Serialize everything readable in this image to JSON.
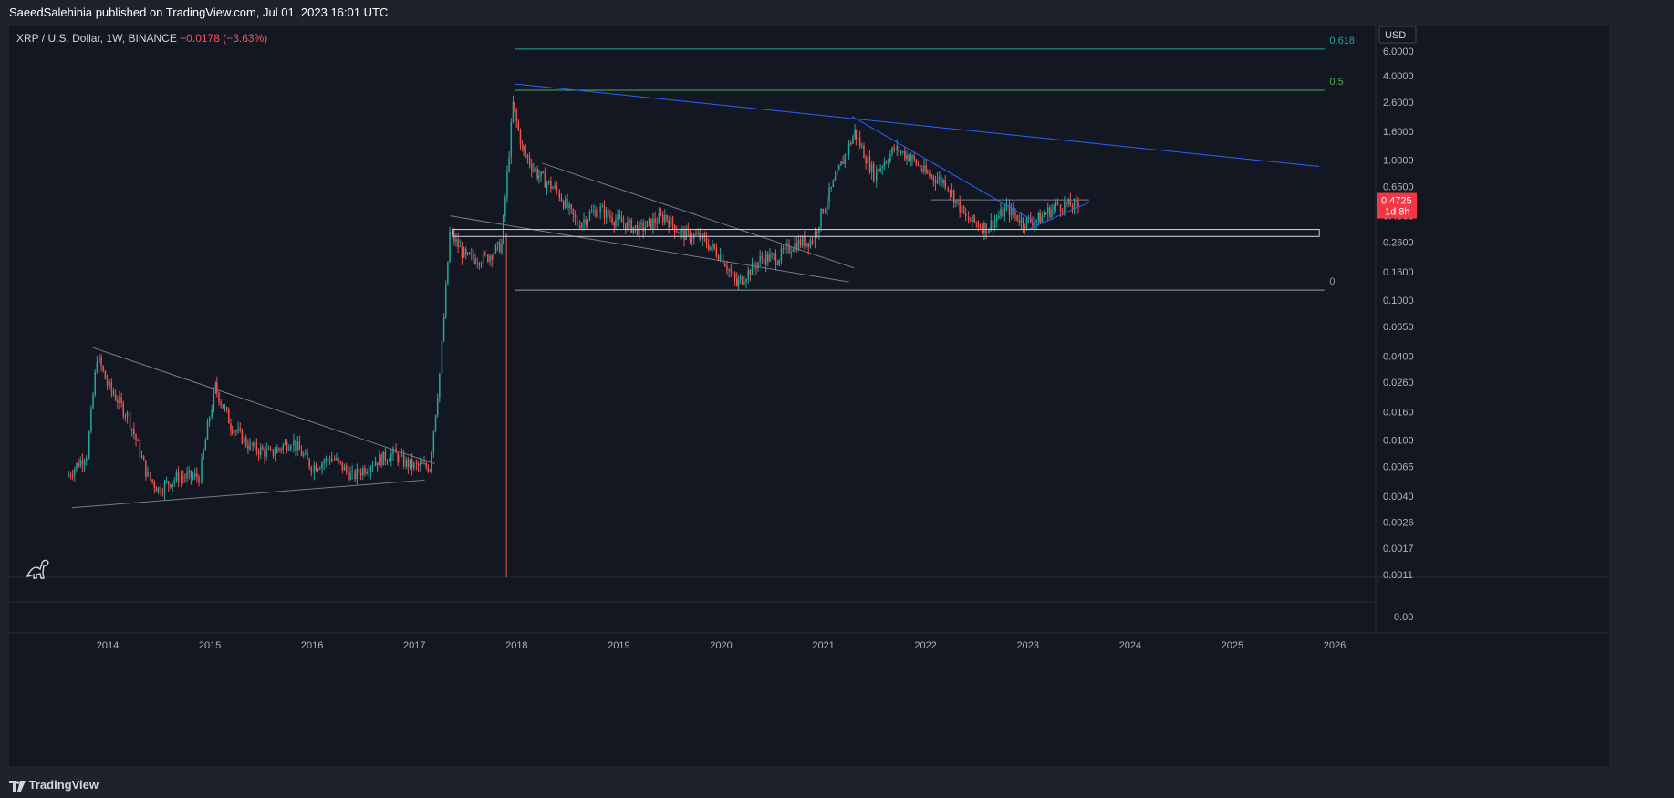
{
  "header": {
    "publish_line": "SaeedSalehinia published on TradingView.com, Jul 01, 2023 16:01 UTC"
  },
  "legend": {
    "symbol": "XRP / U.S. Dollar, 1W, BINANCE",
    "change": "−0.0178 (−3.63%)"
  },
  "footer": {
    "brand": "TradingView"
  },
  "colors": {
    "background": "#131722",
    "panel": "#1e222d",
    "grid": "#2a2e39",
    "up": "#26a69a",
    "down": "#ef5350",
    "trend_blue": "#2962ff",
    "trend_gray": "#787b86",
    "fib_0618": "#26a69a",
    "fib_05": "#4caf50",
    "fib_0": "#9598a1",
    "price_label": "#f23645"
  },
  "icons": [
    "tradingview-logo-icon",
    "dino-icon"
  ],
  "chart_data": {
    "type": "candlestick",
    "title": "",
    "scale": "log",
    "currency_label": "USD",
    "x_ticks": [
      "2014",
      "2015",
      "2016",
      "2017",
      "2018",
      "2019",
      "2020",
      "2021",
      "2022",
      "2023",
      "2024",
      "2025",
      "2026"
    ],
    "y_ticks": [
      "6.0000",
      "4.0000",
      "2.6000",
      "1.6000",
      "1.0000",
      "0.6500",
      "0.4000",
      "0.2600",
      "0.1600",
      "0.1000",
      "0.0650",
      "0.0400",
      "0.0260",
      "0.0160",
      "0.0100",
      "0.0065",
      "0.0040",
      "0.0026",
      "0.0017",
      "0.0011"
    ],
    "lower_pane_tick": "0.00",
    "last_price": "0.4725",
    "countdown": "1d 8h",
    "price_path": [
      [
        2013.6,
        0.0055
      ],
      [
        2013.8,
        0.008
      ],
      [
        2013.9,
        0.04
      ],
      [
        2014.0,
        0.025
      ],
      [
        2014.2,
        0.015
      ],
      [
        2014.4,
        0.0055
      ],
      [
        2014.5,
        0.0045
      ],
      [
        2014.7,
        0.0055
      ],
      [
        2014.9,
        0.0055
      ],
      [
        2015.0,
        0.015
      ],
      [
        2015.05,
        0.024
      ],
      [
        2015.2,
        0.013
      ],
      [
        2015.4,
        0.009
      ],
      [
        2015.6,
        0.008
      ],
      [
        2015.8,
        0.01
      ],
      [
        2016.0,
        0.0065
      ],
      [
        2016.2,
        0.0075
      ],
      [
        2016.4,
        0.0055
      ],
      [
        2016.6,
        0.007
      ],
      [
        2016.8,
        0.008
      ],
      [
        2016.9,
        0.007
      ],
      [
        2017.0,
        0.0065
      ],
      [
        2017.15,
        0.0065
      ],
      [
        2017.25,
        0.03
      ],
      [
        2017.35,
        0.3
      ],
      [
        2017.5,
        0.2
      ],
      [
        2017.7,
        0.2
      ],
      [
        2017.85,
        0.25
      ],
      [
        2017.96,
        2.5
      ],
      [
        2018.05,
        1.2
      ],
      [
        2018.2,
        0.8
      ],
      [
        2018.4,
        0.6
      ],
      [
        2018.6,
        0.35
      ],
      [
        2018.8,
        0.45
      ],
      [
        2018.95,
        0.38
      ],
      [
        2019.2,
        0.32
      ],
      [
        2019.45,
        0.4
      ],
      [
        2019.6,
        0.3
      ],
      [
        2019.8,
        0.28
      ],
      [
        2020.0,
        0.21
      ],
      [
        2020.15,
        0.13
      ],
      [
        2020.4,
        0.2
      ],
      [
        2020.55,
        0.2
      ],
      [
        2020.7,
        0.25
      ],
      [
        2020.9,
        0.27
      ],
      [
        2021.0,
        0.45
      ],
      [
        2021.3,
        1.6
      ],
      [
        2021.5,
        0.8
      ],
      [
        2021.7,
        1.2
      ],
      [
        2021.85,
        1.05
      ],
      [
        2022.0,
        0.8
      ],
      [
        2022.2,
        0.7
      ],
      [
        2022.4,
        0.38
      ],
      [
        2022.6,
        0.33
      ],
      [
        2022.8,
        0.45
      ],
      [
        2022.95,
        0.36
      ],
      [
        2023.1,
        0.38
      ],
      [
        2023.3,
        0.48
      ],
      [
        2023.5,
        0.47
      ]
    ],
    "fib_levels": [
      {
        "label": "0.618",
        "price": 6.2
      },
      {
        "label": "0.5",
        "price": 3.15
      },
      {
        "label": "0",
        "price": 0.118
      }
    ],
    "trendlines": [
      {
        "color": "trend_blue",
        "from": [
          2017.98,
          3.5
        ],
        "to": [
          2025.85,
          0.9
        ]
      },
      {
        "color": "trend_blue",
        "from": [
          2021.28,
          2.05
        ],
        "to": [
          2023.05,
          0.37
        ]
      },
      {
        "color": "trend_blue",
        "from": [
          2023.0,
          0.32
        ],
        "to": [
          2023.6,
          0.5
        ]
      },
      {
        "color": "trend_gray",
        "from": [
          2013.65,
          0.0033
        ],
        "to": [
          2017.1,
          0.0052
        ]
      },
      {
        "color": "trend_gray",
        "from": [
          2013.85,
          0.046
        ],
        "to": [
          2017.2,
          0.0068
        ]
      },
      {
        "color": "trend_gray",
        "from": [
          2018.25,
          0.95
        ],
        "to": [
          2021.3,
          0.17
        ]
      },
      {
        "color": "trend_gray",
        "from": [
          2017.35,
          0.4
        ],
        "to": [
          2021.25,
          0.135
        ]
      },
      {
        "color": "trend_gray",
        "from": [
          2022.05,
          0.52
        ],
        "to": [
          2023.6,
          0.52
        ]
      }
    ],
    "boxes": [
      {
        "from": [
          2017.38,
          0.32
        ],
        "to": [
          2025.85,
          0.285
        ]
      }
    ],
    "vertical_marker": {
      "x": 2017.9,
      "color": "down"
    }
  }
}
